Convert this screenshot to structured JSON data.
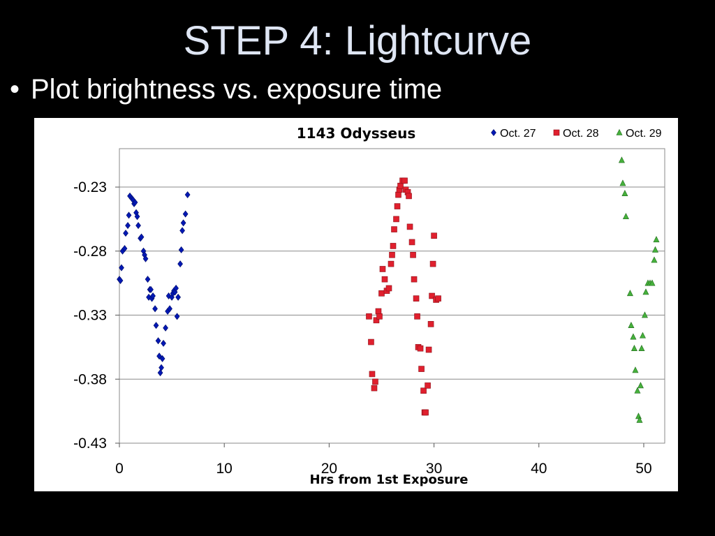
{
  "slide": {
    "title": "STEP 4: Lightcurve",
    "bullet": "Plot brightness vs. exposure time"
  },
  "chart_data": {
    "type": "scatter",
    "title": "1143 Odysseus",
    "xlabel": "Hrs from 1st Exposure",
    "ylabel": "",
    "xlim": [
      0,
      52
    ],
    "ylim": [
      -0.43,
      -0.2
    ],
    "xticks": [
      0,
      10,
      20,
      30,
      40,
      50
    ],
    "yticks": [
      -0.23,
      -0.28,
      -0.33,
      -0.38,
      -0.43
    ],
    "ytick_labels": [
      "-0.23",
      "-0.28",
      "-0.33",
      "-0.38",
      "-0.43"
    ],
    "grid": "horizontal",
    "legend_position": "top-right",
    "series": [
      {
        "name": "Oct. 27",
        "color": "#0018b4",
        "marker": "diamond",
        "points": [
          [
            0.0,
            -0.302
          ],
          [
            0.1,
            -0.303
          ],
          [
            0.2,
            -0.293
          ],
          [
            0.3,
            -0.28
          ],
          [
            0.5,
            -0.278
          ],
          [
            0.6,
            -0.266
          ],
          [
            0.8,
            -0.26
          ],
          [
            0.9,
            -0.252
          ],
          [
            1.0,
            -0.237
          ],
          [
            1.2,
            -0.239
          ],
          [
            1.3,
            -0.24
          ],
          [
            1.4,
            -0.243
          ],
          [
            1.5,
            -0.242
          ],
          [
            1.6,
            -0.25
          ],
          [
            1.7,
            -0.253
          ],
          [
            1.8,
            -0.26
          ],
          [
            2.0,
            -0.27
          ],
          [
            2.1,
            -0.269
          ],
          [
            2.3,
            -0.28
          ],
          [
            2.4,
            -0.283
          ],
          [
            2.5,
            -0.286
          ],
          [
            2.7,
            -0.302
          ],
          [
            2.8,
            -0.316
          ],
          [
            2.9,
            -0.31
          ],
          [
            3.0,
            -0.31
          ],
          [
            3.1,
            -0.317
          ],
          [
            3.2,
            -0.315
          ],
          [
            3.4,
            -0.325
          ],
          [
            3.5,
            -0.338
          ],
          [
            3.7,
            -0.35
          ],
          [
            3.8,
            -0.362
          ],
          [
            3.9,
            -0.375
          ],
          [
            4.0,
            -0.371
          ],
          [
            4.1,
            -0.364
          ],
          [
            4.2,
            -0.352
          ],
          [
            4.4,
            -0.34
          ],
          [
            4.6,
            -0.327
          ],
          [
            4.7,
            -0.315
          ],
          [
            4.8,
            -0.325
          ],
          [
            5.0,
            -0.316
          ],
          [
            5.1,
            -0.313
          ],
          [
            5.2,
            -0.311
          ],
          [
            5.3,
            -0.312
          ],
          [
            5.4,
            -0.309
          ],
          [
            5.5,
            -0.331
          ],
          [
            5.6,
            -0.316
          ],
          [
            5.8,
            -0.29
          ],
          [
            5.9,
            -0.279
          ],
          [
            6.0,
            -0.264
          ],
          [
            6.1,
            -0.258
          ],
          [
            6.3,
            -0.251
          ],
          [
            6.5,
            -0.236
          ]
        ]
      },
      {
        "name": "Oct. 28",
        "color": "#e0202e",
        "marker": "square",
        "points": [
          [
            23.8,
            -0.331
          ],
          [
            24.0,
            -0.351
          ],
          [
            24.1,
            -0.376
          ],
          [
            24.3,
            -0.387
          ],
          [
            24.4,
            -0.382
          ],
          [
            24.5,
            -0.334
          ],
          [
            24.7,
            -0.327
          ],
          [
            24.8,
            -0.331
          ],
          [
            25.0,
            -0.313
          ],
          [
            25.1,
            -0.294
          ],
          [
            25.3,
            -0.302
          ],
          [
            25.5,
            -0.311
          ],
          [
            25.7,
            -0.309
          ],
          [
            25.9,
            -0.29
          ],
          [
            26.0,
            -0.283
          ],
          [
            26.1,
            -0.276
          ],
          [
            26.2,
            -0.263
          ],
          [
            26.4,
            -0.255
          ],
          [
            26.5,
            -0.245
          ],
          [
            26.6,
            -0.236
          ],
          [
            26.7,
            -0.232
          ],
          [
            26.8,
            -0.229
          ],
          [
            27.0,
            -0.225
          ],
          [
            27.2,
            -0.225
          ],
          [
            27.3,
            -0.232
          ],
          [
            27.5,
            -0.234
          ],
          [
            27.6,
            -0.237
          ],
          [
            27.7,
            -0.261
          ],
          [
            27.9,
            -0.273
          ],
          [
            28.0,
            -0.283
          ],
          [
            28.1,
            -0.302
          ],
          [
            28.3,
            -0.317
          ],
          [
            28.4,
            -0.331
          ],
          [
            28.5,
            -0.355
          ],
          [
            28.7,
            -0.356
          ],
          [
            28.8,
            -0.372
          ],
          [
            29.0,
            -0.389
          ],
          [
            29.1,
            -0.406
          ],
          [
            29.2,
            -0.406
          ],
          [
            29.4,
            -0.385
          ],
          [
            29.5,
            -0.357
          ],
          [
            29.7,
            -0.337
          ],
          [
            29.8,
            -0.315
          ],
          [
            29.9,
            -0.29
          ],
          [
            30.0,
            -0.268
          ],
          [
            30.2,
            -0.318
          ],
          [
            30.4,
            -0.317
          ]
        ]
      },
      {
        "name": "Oct. 29",
        "color": "#46b13c",
        "marker": "triangle",
        "points": [
          [
            47.9,
            -0.209
          ],
          [
            48.0,
            -0.227
          ],
          [
            48.2,
            -0.235
          ],
          [
            48.3,
            -0.253
          ],
          [
            48.7,
            -0.313
          ],
          [
            48.8,
            -0.338
          ],
          [
            49.0,
            -0.347
          ],
          [
            49.1,
            -0.356
          ],
          [
            49.2,
            -0.373
          ],
          [
            49.4,
            -0.389
          ],
          [
            49.5,
            -0.409
          ],
          [
            49.6,
            -0.412
          ],
          [
            49.7,
            -0.385
          ],
          [
            49.8,
            -0.356
          ],
          [
            49.9,
            -0.346
          ],
          [
            50.1,
            -0.33
          ],
          [
            50.2,
            -0.312
          ],
          [
            50.4,
            -0.305
          ],
          [
            50.6,
            -0.305
          ],
          [
            50.8,
            -0.305
          ],
          [
            51.0,
            -0.287
          ],
          [
            51.1,
            -0.279
          ],
          [
            51.2,
            -0.271
          ]
        ]
      }
    ]
  }
}
